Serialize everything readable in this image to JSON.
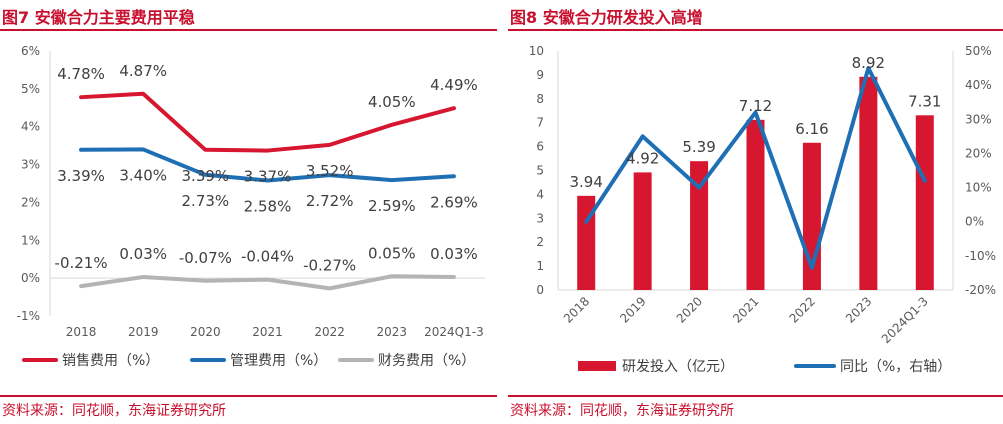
{
  "left": {
    "title": "图7 安徽合力主要费用平稳",
    "source": "资料来源：同花顺，东海证券研究所",
    "chart_data": {
      "type": "line",
      "categories": [
        "2018",
        "2019",
        "2020",
        "2021",
        "2022",
        "2023",
        "2024Q1-3"
      ],
      "y_ticks": [
        "6%",
        "5%",
        "4%",
        "3%",
        "2%",
        "1%",
        "0%",
        "-1%"
      ],
      "ylim": [
        -1,
        6
      ],
      "series": [
        {
          "name": "销售费用（%）",
          "color": "#d7172f",
          "values": [
            4.78,
            4.87,
            3.39,
            3.37,
            3.52,
            4.05,
            4.49
          ],
          "labels": [
            "4.78%",
            "4.87%",
            "3.39%",
            "3.37%",
            "3.52%",
            "4.05%",
            "4.49%"
          ]
        },
        {
          "name": "管理费用（%）",
          "color": "#1f6fb5",
          "values": [
            3.39,
            3.4,
            2.73,
            2.58,
            2.72,
            2.59,
            2.69
          ],
          "labels": [
            "3.39%",
            "3.40%",
            "2.73%",
            "2.58%",
            "2.72%",
            "2.59%",
            "2.69%"
          ]
        },
        {
          "name": "财务费用（%）",
          "color": "#b4b4b4",
          "values": [
            -0.21,
            0.03,
            -0.07,
            -0.04,
            -0.27,
            0.05,
            0.03
          ],
          "labels": [
            "-0.21%",
            "0.03%",
            "-0.07%",
            "-0.04%",
            "-0.27%",
            "0.05%",
            "0.03%"
          ]
        }
      ]
    }
  },
  "right": {
    "title": "图8 安徽合力研发投入高增",
    "source": "资料来源：同花顺，东海证券研究所",
    "chart_data": {
      "type": "bar",
      "categories": [
        "2018",
        "2019",
        "2020",
        "2021",
        "2022",
        "2023",
        "2024Q1-3"
      ],
      "y_left_ticks": [
        "10",
        "9",
        "8",
        "7",
        "6",
        "5",
        "4",
        "3",
        "2",
        "1",
        "0"
      ],
      "y_right_ticks": [
        "50%",
        "40%",
        "30%",
        "20%",
        "10%",
        "0%",
        "-10%",
        "-20%"
      ],
      "ylim_left": [
        0,
        10
      ],
      "ylim_right": [
        -20,
        50
      ],
      "series": [
        {
          "name": "研发投入（亿元）",
          "color": "#d7172f",
          "axis": "left",
          "values": [
            3.94,
            4.92,
            5.39,
            7.12,
            6.16,
            8.92,
            7.31
          ],
          "labels": [
            "3.94",
            "4.92",
            "5.39",
            "7.12",
            "6.16",
            "8.92",
            "7.31"
          ]
        },
        {
          "name": "同比（%，右轴）",
          "color": "#1f6fb5",
          "axis": "right",
          "line": true,
          "values": [
            0,
            25,
            10,
            32,
            -13.5,
            45,
            12
          ]
        }
      ]
    }
  }
}
